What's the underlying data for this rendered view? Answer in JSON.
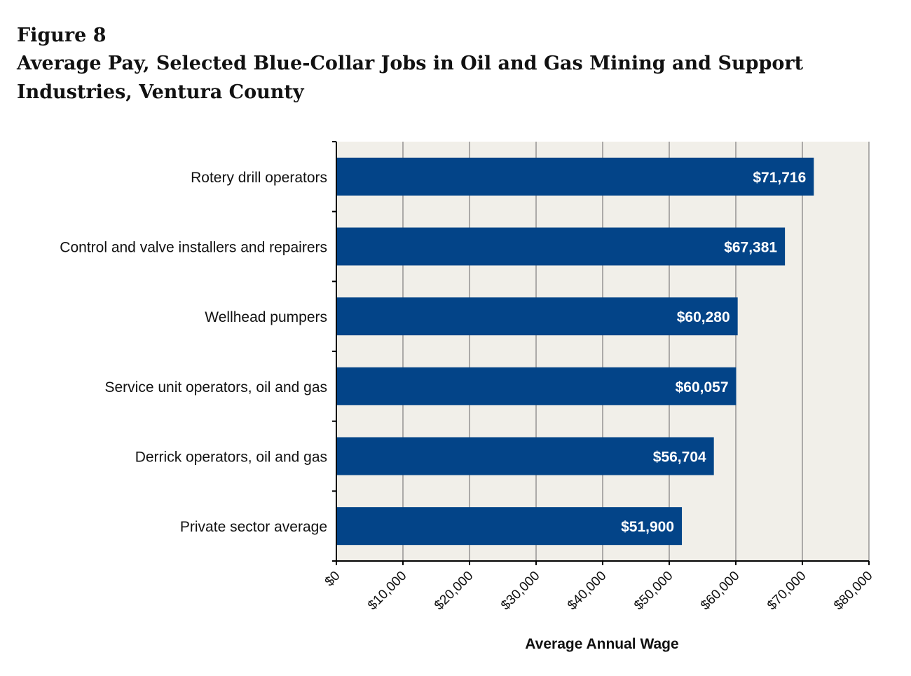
{
  "figure": {
    "label": "Figure 8",
    "title": "Average Pay, Selected Blue-Collar Jobs in Oil and Gas Mining and Support Industries, Ventura County"
  },
  "colors": {
    "bar": "#034488",
    "plot_background": "#f1efe9",
    "grid": "#666666",
    "bar_label": "#ffffff",
    "text": "#111111"
  },
  "chart_data": {
    "type": "bar",
    "orientation": "horizontal",
    "categories": [
      "Rotery drill operators",
      "Control and valve installers and repairers",
      "Wellhead pumpers",
      "Service unit operators, oil and gas",
      "Derrick operators, oil and gas",
      "Private sector average"
    ],
    "values": [
      71716,
      67381,
      60280,
      60057,
      56704,
      51900
    ],
    "data_labels": [
      "$71,716",
      "$67,381",
      "$60,280",
      "$60,057",
      "$56,704",
      "$51,900"
    ],
    "title": "Average Pay, Selected Blue-Collar Jobs in Oil and Gas Mining and Support Industries, Ventura County",
    "xlabel": "Average Annual Wage",
    "ylabel": "",
    "xlim": [
      0,
      80000
    ],
    "x_ticks": [
      0,
      10000,
      20000,
      30000,
      40000,
      50000,
      60000,
      70000,
      80000
    ],
    "x_tick_labels": [
      "$0",
      "$10,000",
      "$20,000",
      "$30,000",
      "$40,000",
      "$50,000",
      "$60,000",
      "$70,000",
      "$80,000"
    ],
    "grid": "vertical",
    "legend": "none"
  }
}
